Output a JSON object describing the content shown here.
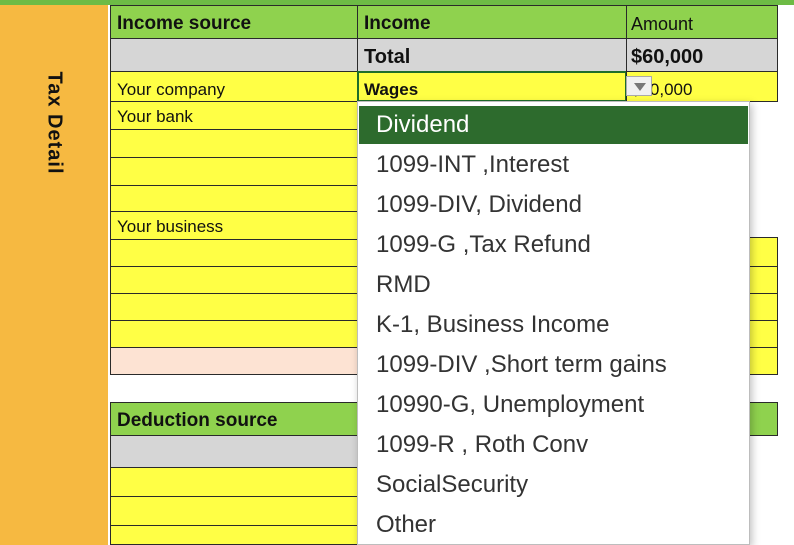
{
  "sidebar": {
    "title": "Tax Detail"
  },
  "income_table": {
    "col_source": "Income source",
    "col_income": "Income",
    "col_amount": "Amount",
    "total_label": "Total",
    "total_value": "$60,000",
    "rows": [
      {
        "source": "Your company",
        "income": "Wages",
        "amount": "$60,000"
      },
      {
        "source": "Your bank",
        "income": "",
        "amount": ""
      },
      {
        "source": "",
        "income": "",
        "amount": ""
      },
      {
        "source": "",
        "income": "",
        "amount": ""
      },
      {
        "source": "Your business",
        "income": "",
        "amount": ""
      }
    ]
  },
  "deduction_table": {
    "col_source": "Deduction source"
  },
  "dropdown": {
    "selected_value": "Wages",
    "options": [
      "Dividend",
      "1099-INT ,Interest",
      "1099-DIV, Dividend",
      "1099-G ,Tax Refund",
      "RMD",
      "K-1, Business Income",
      "1099-DIV ,Short term gains",
      "10990-G, Unemployment",
      "1099-R , Roth Conv",
      "SocialSecurity",
      "Other"
    ],
    "highlighted": "Dividend"
  },
  "colors": {
    "header_green": "#8fd24e",
    "cell_yellow": "#ffff45",
    "sidebar_orange": "#f6b941",
    "selected_green": "#2d6b2d"
  }
}
